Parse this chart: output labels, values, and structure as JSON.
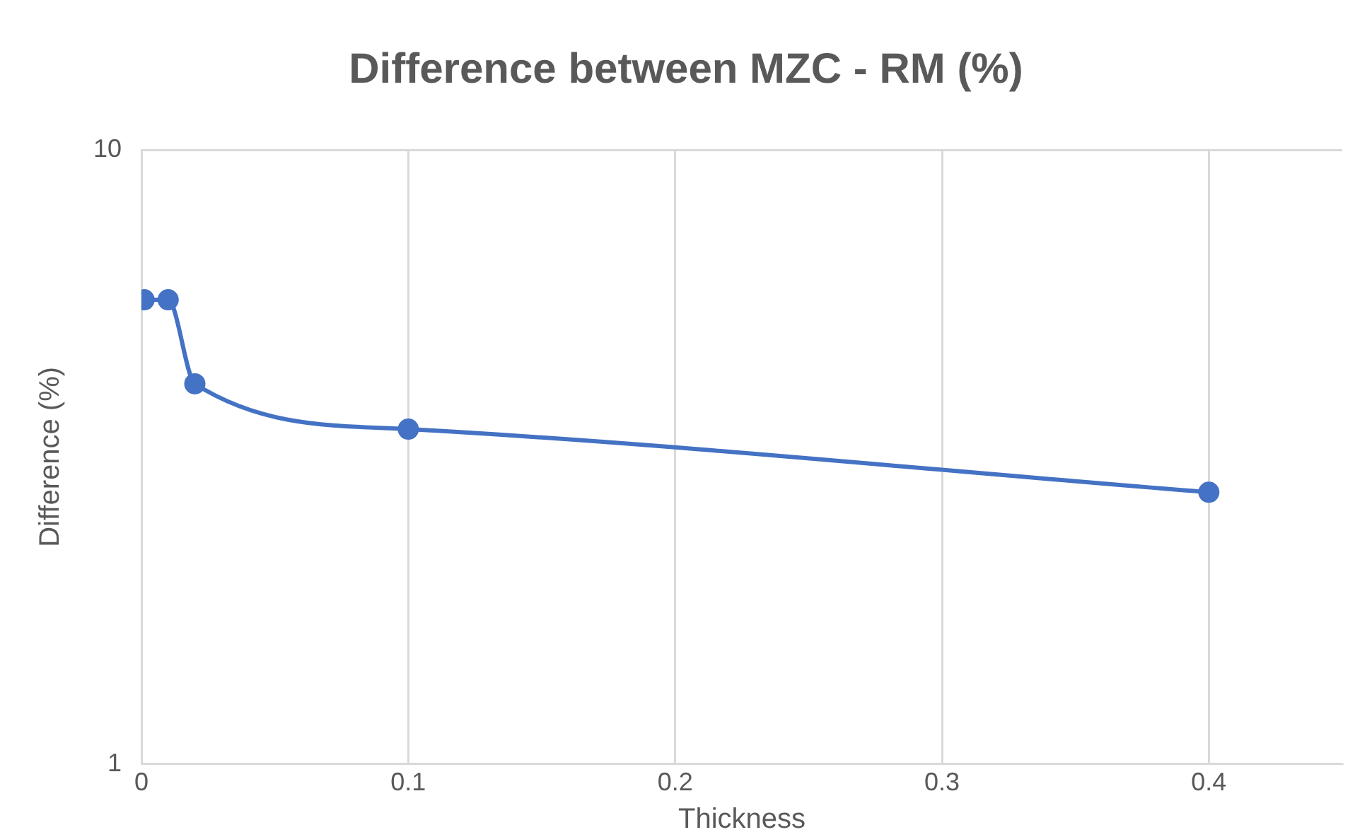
{
  "chart_data": {
    "type": "line",
    "title": "Difference between MZC - RM (%)",
    "xlabel": "Thickness",
    "ylabel": "Difference (%)",
    "x": [
      0.001,
      0.01,
      0.02,
      0.1,
      0.4
    ],
    "series": [
      {
        "color": "#4472c4",
        "values": [
          5.7,
          5.7,
          4.16,
          3.51,
          2.77
        ]
      }
    ],
    "xlim": [
      0,
      0.45
    ],
    "xticks": [
      0,
      0.1,
      0.2,
      0.3,
      0.4
    ],
    "ylim": [
      1,
      10
    ],
    "yticks": [
      1,
      10
    ],
    "log": "y",
    "grid": "x",
    "legend": false,
    "marker": "circle",
    "line_style": "solid"
  }
}
